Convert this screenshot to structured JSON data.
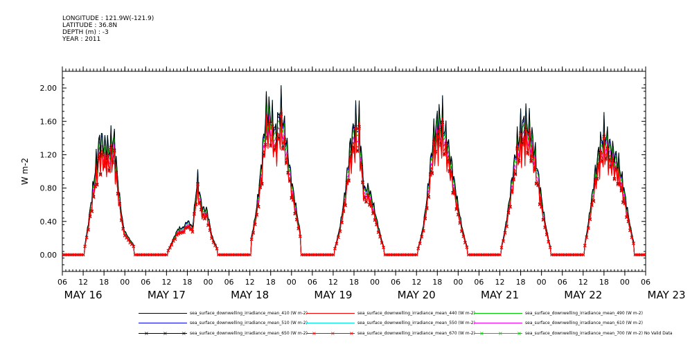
{
  "header": {
    "longitude": "LONGITUDE : 121.9W(-121.9)",
    "latitude": "LATITUDE : 36.8N",
    "depth": "DEPTH (m) : -3",
    "year": "YEAR : 2011"
  },
  "chart_data": {
    "type": "line",
    "title": "",
    "xlabel": "",
    "ylabel": "W m-2",
    "ylim": [
      -0.2,
      2.2
    ],
    "y_ticks": [
      "0.00",
      "0.40",
      "0.80",
      "1.20",
      "1.60",
      "2.00"
    ],
    "hour_ticks": [
      "06",
      "12",
      "18",
      "00",
      "06",
      "12",
      "18",
      "00",
      "06",
      "12",
      "18",
      "00",
      "06",
      "12",
      "18",
      "00",
      "06",
      "12",
      "18",
      "00",
      "06",
      "12",
      "18",
      "00",
      "06",
      "12",
      "18",
      "00",
      "06"
    ],
    "day_labels": [
      "MAY 16",
      "MAY 17",
      "MAY 18",
      "MAY 19",
      "MAY 20",
      "MAY 21",
      "MAY 22",
      "MAY 23"
    ],
    "x_range_hours": [
      0,
      168
    ],
    "x_start": "2011-05-16 06:00",
    "days": [
      {
        "label": "MAY 16",
        "peak": 1.5,
        "amp_factors": [
          0.15,
          0.5,
          0.8,
          1.0,
          0.9,
          0.85,
          0.95,
          0.55,
          0.25,
          0.2,
          0.15
        ]
      },
      {
        "label": "MAY 17",
        "peak": 1.1,
        "amp_factors": [
          0.1,
          0.25,
          0.35,
          0.32,
          0.38,
          0.3,
          0.85,
          0.55,
          0.6,
          0.3,
          0.15
        ]
      },
      {
        "label": "MAY 18",
        "peak": 2.02,
        "amp_factors": [
          0.2,
          0.4,
          0.65,
          0.95,
          0.85,
          0.72,
          0.9,
          0.78,
          0.6,
          0.45,
          0.25
        ]
      },
      {
        "label": "MAY 19",
        "peak": 1.6,
        "amp_factors": [
          0.1,
          0.3,
          0.55,
          0.85,
          1.0,
          0.98,
          0.5,
          0.55,
          0.45,
          0.3,
          0.12
        ]
      },
      {
        "label": "MAY 20",
        "peak": 1.64,
        "amp_factors": [
          0.1,
          0.3,
          0.6,
          0.92,
          1.0,
          0.98,
          0.85,
          0.7,
          0.5,
          0.3,
          0.12
        ]
      },
      {
        "label": "MAY 21",
        "peak": 1.59,
        "amp_factors": [
          0.12,
          0.38,
          0.65,
          0.88,
          0.98,
          1.0,
          0.96,
          0.82,
          0.6,
          0.35,
          0.12
        ]
      },
      {
        "label": "MAY 22",
        "peak": 1.66,
        "amp_factors": [
          0.15,
          0.45,
          0.7,
          0.85,
          0.9,
          0.8,
          0.75,
          0.72,
          0.6,
          0.4,
          0.18
        ]
      }
    ],
    "series": [
      {
        "name": "sea_surface_downwelling_irradiance_mean_410 (W m-2)",
        "color": "#000000",
        "scale": 1.0,
        "marker": "none"
      },
      {
        "name": "sea_surface_downwelling_irradiance_mean_440 (W m-2)",
        "color": "#ff0000",
        "scale": 0.86,
        "marker": "none"
      },
      {
        "name": "sea_surface_downwelling_irradiance_mean_490 (W m-2)",
        "color": "#00cc00",
        "scale": 0.95,
        "marker": "none"
      },
      {
        "name": "sea_surface_downwelling_irradiance_mean_510 (W m-2)",
        "color": "#0000ff",
        "scale": 0.98,
        "marker": "none"
      },
      {
        "name": "sea_surface_downwelling_irradiance_mean_550 (W m-2)",
        "color": "#00e5e5",
        "scale": 1.0,
        "marker": "none"
      },
      {
        "name": "sea_surface_downwelling_irradiance_mean_610 (W m-2)",
        "color": "#ff00ff",
        "scale": 0.9,
        "marker": "none"
      },
      {
        "name": "sea_surface_downwelling_irradiance_mean_650 (W m-2)",
        "color": "#000000",
        "scale": 0.83,
        "marker": "x"
      },
      {
        "name": "sea_surface_downwelling_irradiance_mean_670 (W m-2)",
        "color": "#ff0000",
        "scale": 0.82,
        "marker": "x"
      },
      {
        "name": "sea_surface_downwelling_irradiance_mean_700 (W m-2) No Valid Data",
        "color": "#00cc00",
        "scale": 0.0,
        "marker": "x"
      }
    ]
  }
}
